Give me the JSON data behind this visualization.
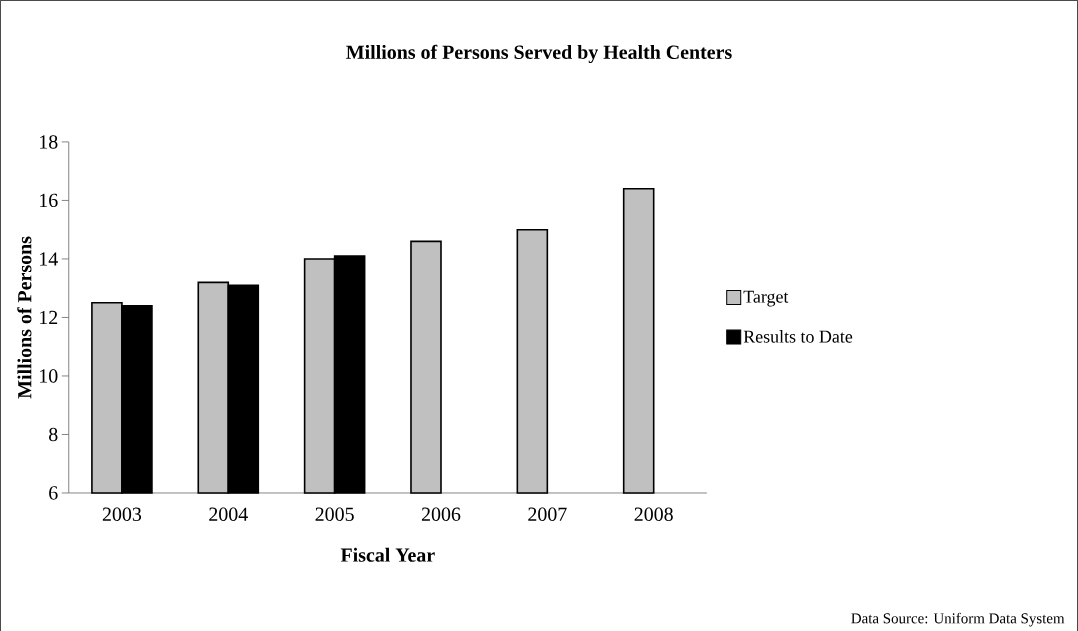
{
  "chart_data": {
    "type": "bar",
    "title": "Millions of Persons Served by Health Centers",
    "xlabel": "Fiscal Year",
    "ylabel": "Millions of Persons",
    "categories": [
      "2003",
      "2004",
      "2005",
      "2006",
      "2007",
      "2008"
    ],
    "series": [
      {
        "name": "Target",
        "color": "#c0c0c0",
        "values": [
          12.5,
          13.2,
          14.0,
          14.6,
          15.0,
          16.4
        ]
      },
      {
        "name": "Results to Date",
        "color": "#000000",
        "values": [
          12.4,
          13.1,
          14.1,
          null,
          null,
          null
        ]
      }
    ],
    "ylim": [
      6,
      18
    ],
    "yticks": [
      6,
      8,
      10,
      12,
      14,
      16,
      18
    ],
    "legend": "right",
    "grid": false,
    "annotations": [
      "Data Source: Uniform Data System"
    ]
  }
}
